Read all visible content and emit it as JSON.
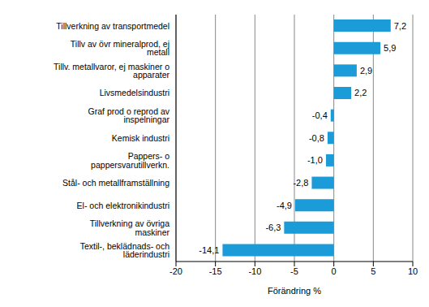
{
  "chart_data": {
    "type": "bar",
    "orientation": "horizontal",
    "x_label": "Förändring %",
    "categories": [
      "Tillverkning av transportmedel",
      "Tillv av övr mineralprod, ej metall",
      "Tillv. metallvaror, ej maskiner o apparater",
      "Livsmedelsindustri",
      "Graf prod o reprod av inspelningar",
      "Kemisk industri",
      "Pappers- o pappersvarutillverkn.",
      "Stål- och metallframställning",
      "El- och elektronikindustri",
      "Tillverkning av övriga maskiner",
      "Textil-, beklädnads- och läderindustri"
    ],
    "values": [
      7.2,
      5.9,
      2.9,
      2.2,
      -0.4,
      -0.8,
      -1.0,
      -2.8,
      -4.9,
      -6.3,
      -14.1
    ],
    "value_labels": [
      "7,2",
      "5,9",
      "2,9",
      "2,2",
      "-0,4",
      "-0,8",
      "-1,0",
      "-2,8",
      "-4,9",
      "-6,3",
      "-14,1"
    ],
    "color": "#1b9bd7",
    "xlim": [
      -20,
      10
    ],
    "xticks": [
      -20,
      -15,
      -10,
      -5,
      0,
      5,
      10
    ],
    "grid": true,
    "data_labels": true
  }
}
